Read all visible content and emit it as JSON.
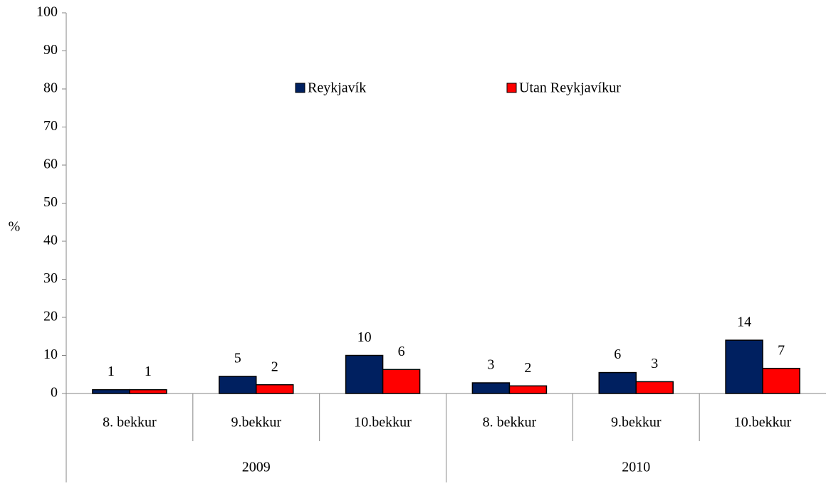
{
  "chart_data": {
    "type": "bar",
    "y_label": "%",
    "categories": [
      "8. bekkur",
      "9.bekkur",
      "10.bekkur",
      "8. bekkur",
      "9.bekkur",
      "10.bekkur"
    ],
    "category_groups": [
      "2009",
      "2010"
    ],
    "series": [
      {
        "name": "Reykjavík",
        "color": "#002060",
        "values": [
          1,
          4.5,
          10,
          2.8,
          5.5,
          14
        ],
        "value_labels": [
          "1",
          "5",
          "10",
          "3",
          "6",
          "14"
        ]
      },
      {
        "name": "Utan Reykjavíkur",
        "color": "#ff0000",
        "values": [
          1,
          2.3,
          6.3,
          2,
          3.1,
          6.6
        ],
        "value_labels": [
          "1",
          "2",
          "6",
          "2",
          "3",
          "7"
        ]
      }
    ],
    "ylim": [
      0,
      100
    ],
    "yticks": [
      0,
      10,
      20,
      30,
      40,
      50,
      60,
      70,
      80,
      90,
      100
    ],
    "legend": "top"
  }
}
